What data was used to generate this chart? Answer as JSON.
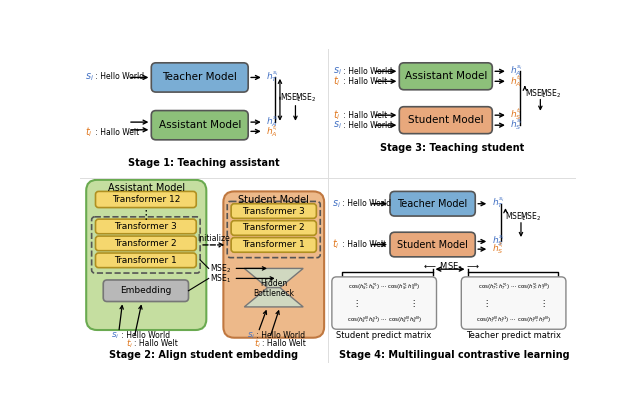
{
  "fig_width": 6.4,
  "fig_height": 4.08,
  "bg_color": "#ffffff",
  "blue_model_color": "#7aadd4",
  "green_model_color": "#8dc07a",
  "orange_model_color": "#e8a87c",
  "yellow_transformer_color": "#f5d76e",
  "gray_embedding_color": "#b8b8b8",
  "assistant_bg_color": "#c5dea0",
  "student_bg_color": "#edb98a",
  "blue_text": "#4472c4",
  "orange_text": "#e07820",
  "stage1_title": "Stage 1: Teaching assistant",
  "stage2_title": "Stage 2: Align student embedding",
  "stage3_title": "Stage 3: Teaching student",
  "stage4_title": "Stage 4: Multilingual contrastive learning"
}
